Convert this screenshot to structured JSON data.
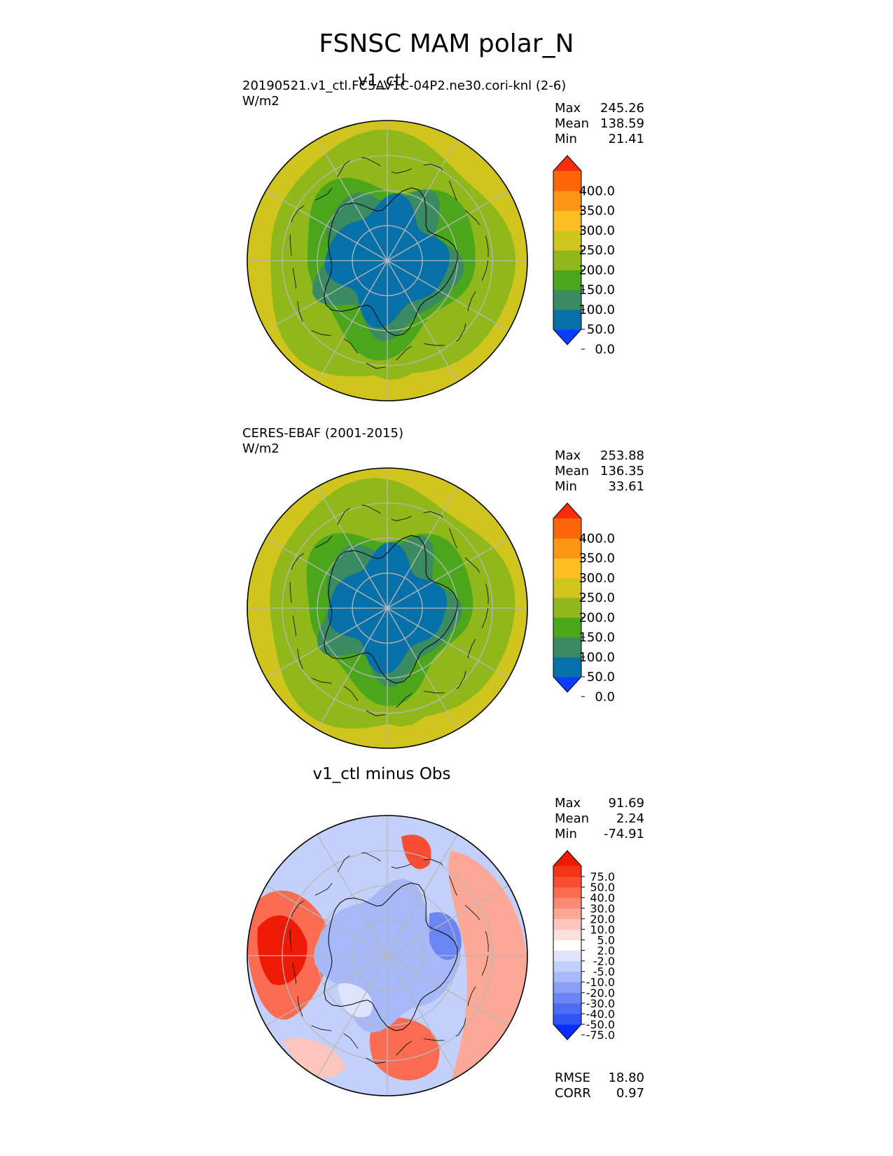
{
  "figure_title": "FSNSC MAM polar_N",
  "panels": [
    {
      "id": "test",
      "title": "v1_ctl",
      "subtitle": "20190521.v1_ctl.FC5AV1C-04P2.ne30.cori-knl (2-6)",
      "units": "W/m2",
      "stats": [
        {
          "label": "Max",
          "value": "245.26"
        },
        {
          "label": "Mean",
          "value": "138.59"
        },
        {
          "label": "Min",
          "value": "21.41"
        }
      ],
      "colorbar": {
        "ticks": [
          "400.0",
          "350.0",
          "300.0",
          "250.0",
          "200.0",
          "150.0",
          "100.0",
          "50.0",
          "0.0"
        ],
        "colors": [
          "#0a3dff",
          "#0670a8",
          "#3a8a62",
          "#4ba61c",
          "#90b81a",
          "#cfc51c",
          "#fbbf22",
          "#fb9614",
          "#fb6708",
          "#fb2d0a"
        ]
      }
    },
    {
      "id": "ref",
      "title": "",
      "subtitle": "CERES-EBAF (2001-2015)",
      "units": "W/m2",
      "stats": [
        {
          "label": "Max",
          "value": "253.88"
        },
        {
          "label": "Mean",
          "value": "136.35"
        },
        {
          "label": "Min",
          "value": "33.61"
        }
      ],
      "colorbar": {
        "ticks": [
          "400.0",
          "350.0",
          "300.0",
          "250.0",
          "200.0",
          "150.0",
          "100.0",
          "50.0",
          "0.0"
        ],
        "colors": [
          "#0a3dff",
          "#0670a8",
          "#3a8a62",
          "#4ba61c",
          "#90b81a",
          "#cfc51c",
          "#fbbf22",
          "#fb9614",
          "#fb6708",
          "#fb2d0a"
        ]
      }
    },
    {
      "id": "diff",
      "title": "v1_ctl minus Obs",
      "subtitle": "",
      "units": "",
      "stats": [
        {
          "label": "Max",
          "value": "91.69"
        },
        {
          "label": "Mean",
          "value": "2.24"
        },
        {
          "label": "Min",
          "value": "-74.91"
        }
      ],
      "metrics": [
        {
          "label": "RMSE",
          "value": "18.80"
        },
        {
          "label": "CORR",
          "value": "0.97"
        }
      ],
      "colorbar": {
        "ticks": [
          "75.0",
          "50.0",
          "40.0",
          "30.0",
          "20.0",
          "10.0",
          "5.0",
          "2.0",
          "-2.0",
          "-5.0",
          "-10.0",
          "-20.0",
          "-30.0",
          "-40.0",
          "-50.0",
          "-75.0"
        ],
        "colors": [
          "#0a2dff",
          "#2f55f5",
          "#4d6cf2",
          "#6b86f3",
          "#889ff5",
          "#a6b8f8",
          "#c3d0fb",
          "#dde4fc",
          "#ffffff",
          "#fde0dc",
          "#fcc6bd",
          "#fba896",
          "#fa8a72",
          "#f96c52",
          "#f74e33",
          "#f33316",
          "#ef1a06"
        ]
      }
    }
  ],
  "chart_data": [
    {
      "type": "heatmap",
      "projection": "north-polar-stereographic",
      "title": "v1_ctl",
      "units": "W/m2",
      "value_range": [
        21.41,
        245.26
      ],
      "mean": 138.59,
      "levels": [
        0,
        50,
        100,
        150,
        200,
        250,
        300,
        350,
        400
      ],
      "field_by_latitude": [
        {
          "lat": 90,
          "value": 30
        },
        {
          "lat": 80,
          "value": 40
        },
        {
          "lat": 70,
          "value": 110
        },
        {
          "lat": 60,
          "value": 170
        },
        {
          "lat": 50,
          "value": 210
        }
      ]
    },
    {
      "type": "heatmap",
      "projection": "north-polar-stereographic",
      "title": "",
      "units": "W/m2",
      "value_range": [
        33.61,
        253.88
      ],
      "mean": 136.35,
      "levels": [
        0,
        50,
        100,
        150,
        200,
        250,
        300,
        350,
        400
      ],
      "field_by_latitude": [
        {
          "lat": 90,
          "value": 35
        },
        {
          "lat": 80,
          "value": 45
        },
        {
          "lat": 70,
          "value": 105
        },
        {
          "lat": 60,
          "value": 165
        },
        {
          "lat": 50,
          "value": 205
        }
      ]
    },
    {
      "type": "heatmap",
      "projection": "north-polar-stereographic",
      "title": "v1_ctl minus Obs",
      "value_range": [
        -74.91,
        91.69
      ],
      "mean": 2.24,
      "rmse": 18.8,
      "corr": 0.97,
      "levels": [
        -75,
        -50,
        -40,
        -30,
        -20,
        -10,
        -5,
        -2,
        2,
        5,
        10,
        20,
        30,
        40,
        50,
        75
      ]
    }
  ]
}
